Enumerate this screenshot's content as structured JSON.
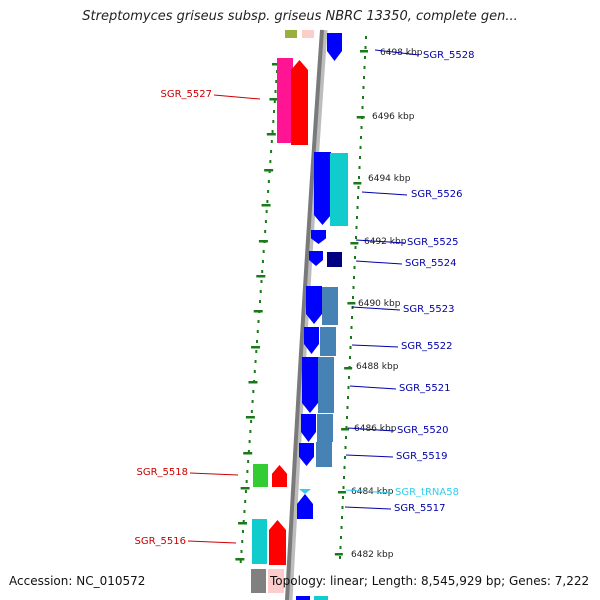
{
  "title": "Streptomyces griseus subsp. griseus NBRC 13350, complete gen...",
  "footer": {
    "accession": "Accession: NC_010572",
    "summary": "Topology: linear; Length: 8,545,929 bp; Genes: 7,222"
  },
  "colors": {
    "red": "#ff0000",
    "magenta": "#ff1493",
    "green": "#33cc33",
    "cyan": "#11cccc",
    "blue": "#0000ff",
    "steelblue": "#4682b4",
    "navy": "#000080",
    "rna": "#33ccee",
    "gray": "#808080",
    "olive": "#99b040",
    "pink": "#ffcccc",
    "label_red": "#cc0000",
    "label_blue": "#0000aa"
  },
  "kbp_marks": [
    "6498 kbp",
    "6496 kbp",
    "6494 kbp",
    "6492 kbp",
    "6490 kbp",
    "6488 kbp",
    "6486 kbp",
    "6484 kbp",
    "6482 kbp"
  ],
  "gene_labels": [
    "SGR_5528",
    "SGR_5527",
    "SGR_5526",
    "SGR_5525",
    "SGR_5524",
    "SGR_5523",
    "SGR_5522",
    "SGR_5521",
    "SGR_5520",
    "SGR_5519",
    "SGR_5518",
    "SGR_tRNA58",
    "SGR_5517",
    "SGR_5516"
  ]
}
